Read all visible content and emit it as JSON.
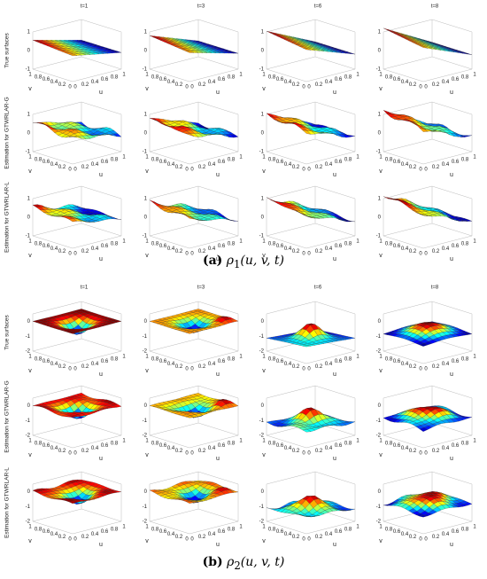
{
  "panels": [
    {
      "label": "(a)",
      "symbol": "ρ",
      "subscript": "1",
      "args": "(u, v, t)",
      "columns": [
        "t=1",
        "t=3",
        "t=6",
        "t=8"
      ],
      "rows": [
        "True surfaces",
        "Estimation for GTWRLAR-G",
        "Estimation for GTWRLAR-L"
      ],
      "z_ticks": [
        "1",
        "0",
        "-1"
      ]
    },
    {
      "label": "(b)",
      "symbol": "ρ",
      "subscript": "2",
      "args": "(u, v, t)",
      "columns": [
        "t=1",
        "t=3",
        "t=6",
        "t=8"
      ],
      "rows": [
        "True surfaces",
        "Estimation for GTWRLAR-G",
        "Estimation for GTWRLAR-L"
      ],
      "z_ticks": [
        "0",
        "-1",
        "-2"
      ]
    }
  ],
  "u_label": "u",
  "v_label": "v",
  "u_ticks": [
    "0",
    "0.2",
    "0.4",
    "0.6",
    "0.8",
    "1"
  ],
  "v_ticks": [
    "1",
    "0.8",
    "0.6",
    "0.4",
    "0.2",
    "0"
  ]
}
